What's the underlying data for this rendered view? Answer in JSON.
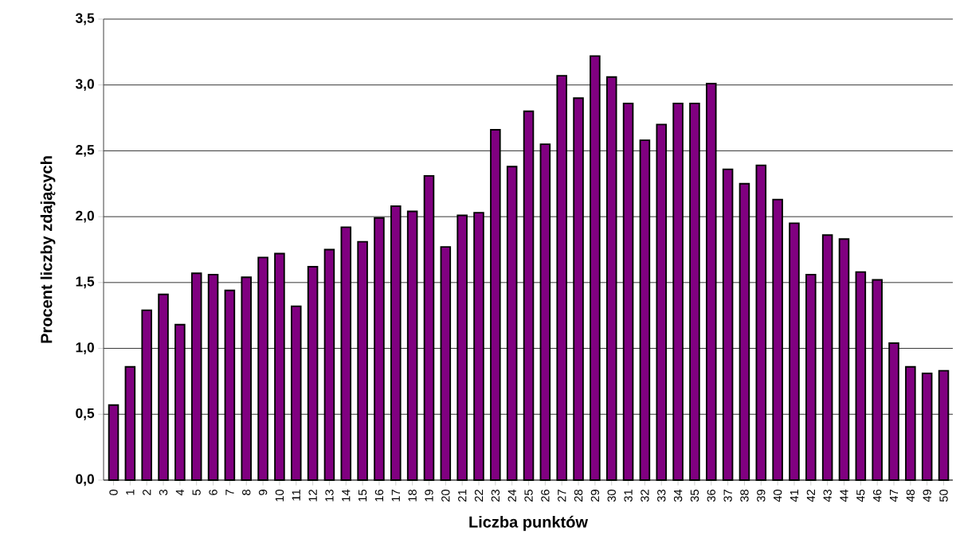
{
  "chart_data": {
    "type": "bar",
    "xlabel": "Liczba punktów",
    "ylabel": "Procent liczby zdających",
    "categories": [
      "0",
      "1",
      "2",
      "3",
      "4",
      "5",
      "6",
      "7",
      "8",
      "9",
      "10",
      "11",
      "12",
      "13",
      "14",
      "15",
      "16",
      "17",
      "18",
      "19",
      "20",
      "21",
      "22",
      "23",
      "24",
      "25",
      "26",
      "27",
      "28",
      "29",
      "30",
      "31",
      "32",
      "33",
      "34",
      "35",
      "36",
      "37",
      "38",
      "39",
      "40",
      "41",
      "42",
      "43",
      "44",
      "45",
      "46",
      "47",
      "48",
      "49",
      "50"
    ],
    "values": [
      0.57,
      0.86,
      1.29,
      1.41,
      1.18,
      1.57,
      1.56,
      1.44,
      1.54,
      1.69,
      1.72,
      1.32,
      1.62,
      1.75,
      1.92,
      1.81,
      1.99,
      2.08,
      2.04,
      2.31,
      1.77,
      2.01,
      2.03,
      2.66,
      2.38,
      2.8,
      2.55,
      3.07,
      2.9,
      3.22,
      3.06,
      2.86,
      2.58,
      2.7,
      2.86,
      2.86,
      3.01,
      2.36,
      2.25,
      2.39,
      2.13,
      1.95,
      1.56,
      1.86,
      1.83,
      1.58,
      1.52,
      1.04,
      0.86,
      0.81,
      0.83
    ],
    "color": "#800080",
    "ylim": [
      0,
      3.5
    ],
    "yticks": [
      {
        "value": 0,
        "label": "0,0"
      },
      {
        "value": 0.5,
        "label": "0,5"
      },
      {
        "value": 1,
        "label": "1,0"
      },
      {
        "value": 1.5,
        "label": "1,5"
      },
      {
        "value": 2,
        "label": "2,0"
      },
      {
        "value": 2.5,
        "label": "2,5"
      },
      {
        "value": 3,
        "label": "3,0"
      },
      {
        "value": 3.5,
        "label": "3,5"
      }
    ],
    "grid": "y"
  }
}
